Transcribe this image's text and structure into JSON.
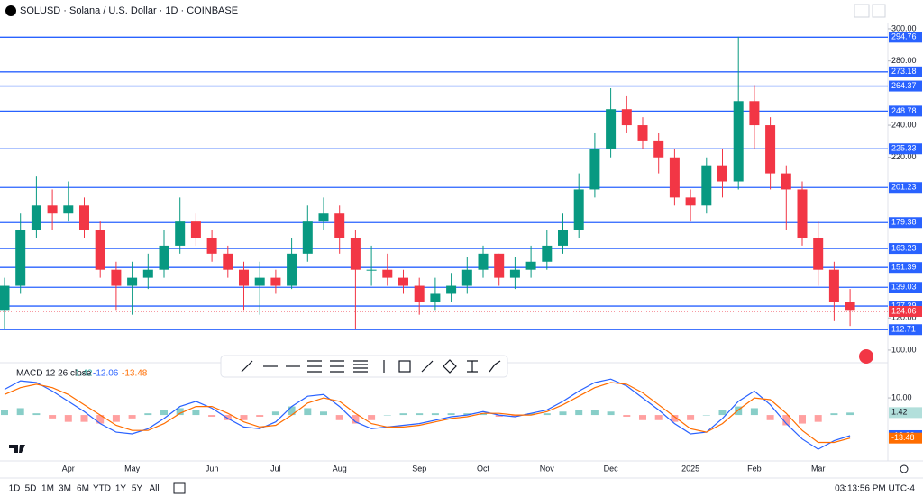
{
  "header": {
    "title": "SOLUSD · Solana / U.S. Dollar · 1D · COINBASE"
  },
  "timeframes": [
    "1D",
    "5D",
    "1M",
    "3M",
    "6M",
    "YTD",
    "1Y",
    "5Y",
    "All"
  ],
  "clock": "03:13:56 PM UTC-4",
  "chart_data": [
    {
      "type": "candlestick",
      "categories": [
        null,
        null,
        null,
        null,
        "Apr",
        null,
        null,
        null,
        "May",
        null,
        null,
        null,
        null,
        "Jun",
        null,
        null,
        null,
        "Jul",
        null,
        null,
        null,
        "Aug",
        null,
        null,
        null,
        null,
        "Sep",
        null,
        null,
        null,
        "Oct",
        null,
        null,
        null,
        "Nov",
        null,
        null,
        null,
        "Dec",
        null,
        null,
        null,
        null,
        "2025",
        null,
        null,
        null,
        "Feb",
        null,
        null,
        null,
        "Mar",
        null,
        null
      ],
      "open": [
        125,
        140,
        175,
        190,
        185,
        190,
        175,
        150,
        140,
        145,
        150,
        165,
        180,
        170,
        160,
        150,
        140,
        145,
        140,
        160,
        180,
        185,
        170,
        150,
        150,
        145,
        140,
        130,
        135,
        140,
        150,
        160,
        145,
        150,
        155,
        165,
        175,
        200,
        225,
        250,
        240,
        230,
        220,
        195,
        190,
        215,
        205,
        255,
        240,
        210,
        200,
        170,
        150,
        130
      ],
      "high": [
        145,
        185,
        208,
        200,
        205,
        195,
        180,
        155,
        155,
        160,
        175,
        195,
        185,
        175,
        165,
        155,
        155,
        150,
        170,
        190,
        195,
        190,
        175,
        165,
        160,
        150,
        145,
        145,
        148,
        158,
        165,
        160,
        158,
        165,
        175,
        185,
        210,
        235,
        263,
        258,
        245,
        235,
        225,
        200,
        220,
        225,
        295,
        265,
        245,
        215,
        205,
        180,
        155,
        138
      ],
      "low": [
        113,
        135,
        170,
        175,
        180,
        170,
        145,
        125,
        122,
        138,
        145,
        160,
        165,
        155,
        145,
        125,
        122,
        135,
        138,
        155,
        175,
        160,
        113,
        140,
        140,
        135,
        122,
        125,
        130,
        135,
        145,
        140,
        138,
        145,
        150,
        160,
        170,
        195,
        220,
        235,
        225,
        210,
        190,
        180,
        185,
        195,
        200,
        225,
        200,
        175,
        165,
        140,
        118,
        115
      ],
      "close": [
        140,
        175,
        190,
        185,
        190,
        175,
        150,
        140,
        145,
        150,
        165,
        180,
        170,
        160,
        150,
        140,
        145,
        140,
        160,
        180,
        185,
        170,
        150,
        150,
        145,
        140,
        130,
        135,
        140,
        150,
        160,
        145,
        150,
        155,
        165,
        175,
        200,
        225,
        250,
        240,
        230,
        220,
        195,
        190,
        215,
        205,
        255,
        240,
        210,
        200,
        170,
        150,
        130,
        125
      ],
      "up_color": "#089981",
      "down_color": "#f23645",
      "levels": [
        294.76,
        273.18,
        264.37,
        248.78,
        225.33,
        201.23,
        179.38,
        163.23,
        151.39,
        139.03,
        127.39,
        112.71
      ],
      "level_color": "#2962ff",
      "last_price": 124.06,
      "ylim": [
        93.8,
        301.1
      ],
      "yticks": [
        {
          "value": 100,
          "label": "100.00"
        },
        {
          "value": 120,
          "label": "120.00"
        },
        {
          "value": 220,
          "label": "220.00"
        },
        {
          "value": 240,
          "label": "240.00"
        },
        {
          "value": 280,
          "label": "280.00"
        },
        {
          "value": 300,
          "label": "300.00"
        }
      ]
    },
    {
      "type": "macd",
      "title": "MACD 12 26 close",
      "series": [
        {
          "name": "Histogram",
          "color": "#26a69a",
          "down_color": "#ff5252",
          "values": [
            3,
            4,
            1,
            -2,
            -4,
            -4,
            -5,
            -4,
            -2,
            1,
            3,
            4,
            3,
            -1,
            -3,
            -3,
            -1,
            2,
            5,
            4,
            2,
            -3,
            -5,
            -3,
            0,
            1,
            1,
            1,
            1,
            1,
            1,
            -1,
            -1,
            1,
            1,
            2,
            3,
            3,
            2,
            -1,
            -3,
            -3,
            -4,
            -3,
            0,
            3,
            5,
            4,
            -3,
            -6,
            -5,
            -4,
            1,
            1.42
          ]
        },
        {
          "name": "MACD",
          "color": "#2962ff",
          "values": [
            15,
            20,
            19,
            14,
            8,
            2,
            -5,
            -10,
            -11,
            -8,
            -2,
            5,
            8,
            4,
            -2,
            -7,
            -8,
            -4,
            5,
            11,
            12,
            5,
            -4,
            -8,
            -7,
            -6,
            -5,
            -3,
            -1,
            0,
            2,
            0,
            -1,
            1,
            3,
            8,
            14,
            19,
            21,
            17,
            10,
            3,
            -5,
            -11,
            -10,
            -2,
            8,
            14,
            6,
            -5,
            -14,
            -20,
            -15,
            -12.06
          ]
        },
        {
          "name": "Signal",
          "color": "#ff6d00",
          "values": [
            12,
            16,
            18,
            16,
            12,
            6,
            0,
            -6,
            -9,
            -9,
            -5,
            1,
            5,
            5,
            1,
            -4,
            -7,
            -6,
            0,
            7,
            10,
            8,
            1,
            -5,
            -7,
            -7,
            -6,
            -4,
            -2,
            -1,
            1,
            1,
            0,
            0,
            2,
            6,
            11,
            16,
            19,
            18,
            13,
            6,
            -1,
            -8,
            -10,
            -5,
            3,
            10,
            9,
            1,
            -9,
            -16,
            -16,
            -13.48
          ]
        }
      ],
      "ylim": [
        -26.8,
        29.5
      ],
      "yticks": [
        {
          "value": 10,
          "label": "10.00"
        }
      ]
    }
  ]
}
